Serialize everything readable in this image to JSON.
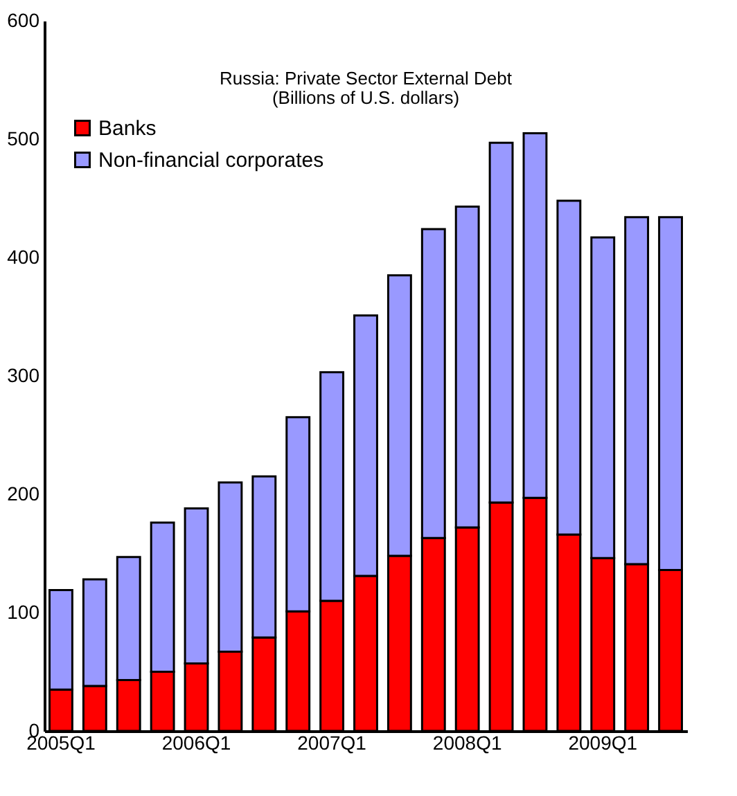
{
  "chart_data": {
    "type": "bar",
    "title": "Russia: Private Sector External Debt",
    "subtitle": "(Billions of U.S. dollars)",
    "categories": [
      "2005Q1",
      null,
      null,
      null,
      "2006Q1",
      null,
      null,
      null,
      "2007Q1",
      null,
      null,
      null,
      "2008Q1",
      null,
      null,
      null,
      "2009Q1",
      null,
      null
    ],
    "stacked": true,
    "series": [
      {
        "name": "Banks",
        "color": "#ff0000",
        "values": [
          35,
          38,
          43,
          50,
          57,
          67,
          79,
          101,
          110,
          131,
          148,
          163,
          172,
          193,
          197,
          166,
          146,
          141,
          136
        ]
      },
      {
        "name": "Non-financial corporates",
        "color": "#9999ff",
        "values": [
          84,
          90,
          104,
          126,
          131,
          143,
          136,
          164,
          193,
          220,
          237,
          261,
          271,
          304,
          308,
          282,
          271,
          293,
          298
        ]
      }
    ],
    "ylim": [
      0,
      600
    ],
    "yticks": [
      0,
      100,
      200,
      300,
      400,
      500,
      600
    ],
    "grid": false,
    "legend": "top left"
  }
}
